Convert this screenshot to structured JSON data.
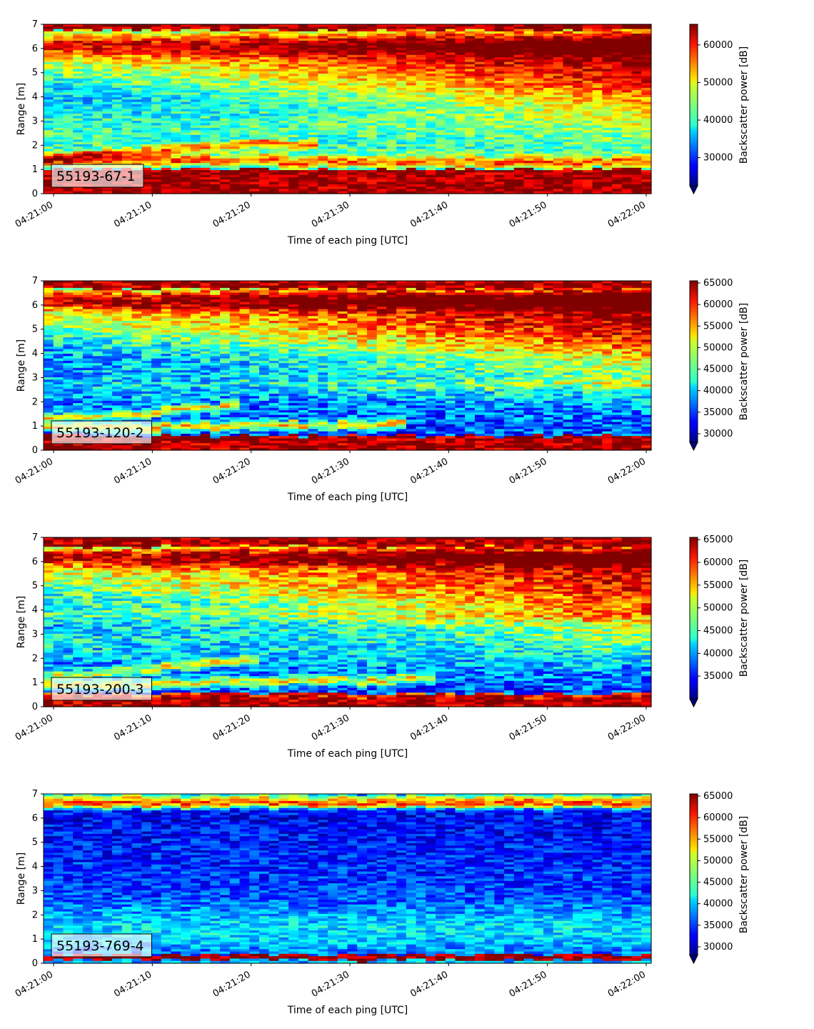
{
  "chart_data": [
    {
      "type": "heatmap",
      "panel_label": "55193-67-1",
      "xlabel": "Time of each ping [UTC]",
      "ylabel": "Range [m]",
      "x_ticks": [
        "04:21:00",
        "04:21:10",
        "04:21:20",
        "04:21:30",
        "04:21:40",
        "04:21:50",
        "04:22:00"
      ],
      "x_range": [
        "04:21:00",
        "04:22:00"
      ],
      "y_ticks": [
        0,
        1,
        2,
        3,
        4,
        5,
        6,
        7
      ],
      "ylim": [
        0,
        7
      ],
      "colorbar_label": "Backscatter power [dB]",
      "colorbar_ticks": [
        30000,
        40000,
        50000,
        60000
      ],
      "colorbar_range": [
        22500,
        65500
      ],
      "colormap": "jet",
      "colorbar_extend": "min"
    },
    {
      "type": "heatmap",
      "panel_label": "55193-120-2",
      "xlabel": "Time of each ping [UTC]",
      "ylabel": "Range [m]",
      "x_ticks": [
        "04:21:00",
        "04:21:10",
        "04:21:20",
        "04:21:30",
        "04:21:40",
        "04:21:50",
        "04:22:00"
      ],
      "x_range": [
        "04:21:00",
        "04:22:00"
      ],
      "y_ticks": [
        0,
        1,
        2,
        3,
        4,
        5,
        6,
        7
      ],
      "ylim": [
        0,
        7
      ],
      "colorbar_label": "Backscatter power [dB]",
      "colorbar_ticks": [
        30000,
        35000,
        40000,
        45000,
        50000,
        55000,
        60000,
        65000
      ],
      "colorbar_range": [
        28000,
        65500
      ],
      "colormap": "jet",
      "colorbar_extend": "min"
    },
    {
      "type": "heatmap",
      "panel_label": "55193-200-3",
      "xlabel": "Time of each ping [UTC]",
      "ylabel": "Range [m]",
      "x_ticks": [
        "04:21:00",
        "04:21:10",
        "04:21:20",
        "04:21:30",
        "04:21:40",
        "04:21:50",
        "04:22:00"
      ],
      "x_range": [
        "04:21:00",
        "04:22:00"
      ],
      "y_ticks": [
        0,
        1,
        2,
        3,
        4,
        5,
        6,
        7
      ],
      "ylim": [
        0,
        7
      ],
      "colorbar_label": "Backscatter power [dB]",
      "colorbar_ticks": [
        35000,
        40000,
        45000,
        50000,
        55000,
        60000,
        65000
      ],
      "colorbar_range": [
        30000,
        65500
      ],
      "colormap": "jet",
      "colorbar_extend": "min"
    },
    {
      "type": "heatmap",
      "panel_label": "55193-769-4",
      "xlabel": "Time of each ping [UTC]",
      "ylabel": "Range [m]",
      "x_ticks": [
        "04:21:00",
        "04:21:10",
        "04:21:20",
        "04:21:30",
        "04:21:40",
        "04:21:50",
        "04:22:00"
      ],
      "x_range": [
        "04:21:00",
        "04:22:00"
      ],
      "y_ticks": [
        0,
        1,
        2,
        3,
        4,
        5,
        6,
        7
      ],
      "ylim": [
        0,
        7
      ],
      "colorbar_label": "Backscatter power [dB]",
      "colorbar_ticks": [
        30000,
        35000,
        40000,
        45000,
        50000,
        55000,
        60000,
        65000
      ],
      "colorbar_range": [
        28000,
        65500
      ],
      "colormap": "jet",
      "colorbar_extend": "min"
    }
  ]
}
